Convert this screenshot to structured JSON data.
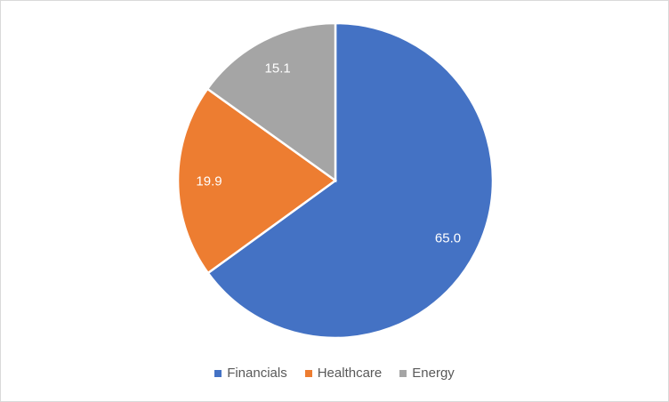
{
  "chart_data": {
    "type": "pie",
    "title": "",
    "categories": [
      "Financials",
      "Healthcare",
      "Energy"
    ],
    "values": [
      65.0,
      19.9,
      15.1
    ],
    "labels": [
      "65.0",
      "19.9",
      "15.1"
    ],
    "colors": [
      "#4472c4",
      "#ed7d31",
      "#a5a5a5"
    ],
    "legend": "bottom",
    "start_angle": "12 o'clock",
    "direction": "clockwise"
  }
}
